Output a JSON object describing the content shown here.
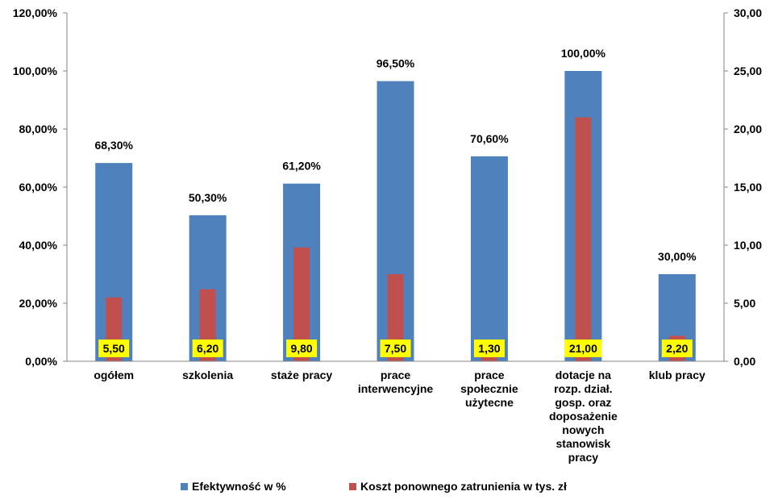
{
  "chart_data": {
    "type": "bar",
    "categories": [
      [
        "ogółem"
      ],
      [
        "szkolenia"
      ],
      [
        "staże pracy"
      ],
      [
        "prace",
        "interwencyjne"
      ],
      [
        "prace",
        "społecznie",
        "użytecne"
      ],
      [
        "dotacje na",
        "rozp. dział.",
        "gosp. oraz",
        "doposażenie",
        "nowych",
        "stanowisk",
        "pracy"
      ],
      [
        "klub pracy"
      ]
    ],
    "series": [
      {
        "name": "Efektywność w %",
        "axis": "left",
        "values": [
          68.3,
          50.3,
          61.2,
          96.5,
          70.6,
          100.0,
          30.0
        ],
        "labels": [
          "68,30%",
          "50,30%",
          "61,20%",
          "96,50%",
          "70,60%",
          "100,00%",
          "30,00%"
        ],
        "color": "#4f81bd"
      },
      {
        "name": "Koszt ponownego zatrunienia w tys. zł",
        "axis": "right",
        "values": [
          5.5,
          6.2,
          9.8,
          7.5,
          1.3,
          21.0,
          2.2
        ],
        "labels": [
          "5,50",
          "6,20",
          "9,80",
          "7,50",
          "1,30",
          "21,00",
          "2,20"
        ],
        "color": "#c0504d",
        "label_background": "#ffff00"
      }
    ],
    "y_left": {
      "ylim": [
        0,
        120
      ],
      "ticks": [
        "0,00%",
        "20,00%",
        "40,00%",
        "60,00%",
        "80,00%",
        "100,00%",
        "120,00%"
      ]
    },
    "y_right": {
      "ylim": [
        0,
        30
      ],
      "ticks": [
        "0,00",
        "5,00",
        "10,00",
        "15,00",
        "20,00",
        "25,00",
        "30,00"
      ]
    },
    "grid": false,
    "legend_position": "bottom"
  }
}
